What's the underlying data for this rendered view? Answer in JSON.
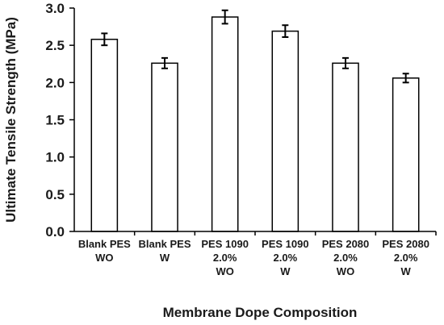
{
  "chart_data": {
    "type": "bar",
    "title": "",
    "xlabel": "Membrane Dope Composition",
    "ylabel": "Ultimate Tensile Strength (MPa)",
    "ylim": [
      0,
      3.0
    ],
    "yticks": [
      "0.0",
      "0.5",
      "1.0",
      "1.5",
      "2.0",
      "2.5",
      "3.0"
    ],
    "grid": false,
    "legend": "none",
    "categories": [
      [
        "Blank PES",
        "WO"
      ],
      [
        "Blank PES",
        "W"
      ],
      [
        "PES 1090",
        "2.0%",
        "WO"
      ],
      [
        "PES 1090",
        "2.0%",
        "W"
      ],
      [
        "PES 2080",
        "2.0%",
        "WO"
      ],
      [
        "PES 2080",
        "2.0%",
        "W"
      ]
    ],
    "values": [
      2.58,
      2.26,
      2.88,
      2.69,
      2.26,
      2.06
    ],
    "errors": [
      0.08,
      0.07,
      0.09,
      0.08,
      0.07,
      0.06
    ],
    "colors": {
      "bar_fill": "#ffffff",
      "bar_stroke": "#000000",
      "axis": "#000000"
    }
  }
}
